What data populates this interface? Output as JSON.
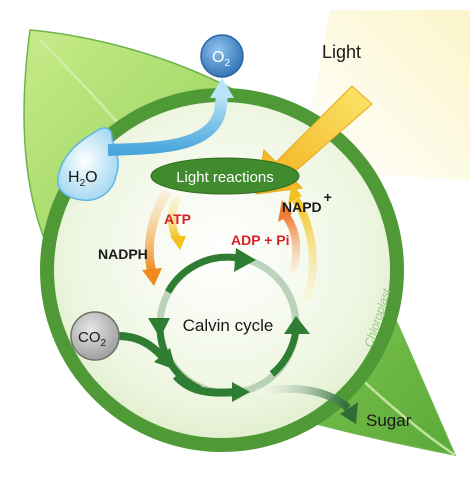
{
  "diagram": {
    "light_label": "Light",
    "o2": {
      "main": "O",
      "sub": "2"
    },
    "h2o": {
      "pre": "H",
      "sub": "2",
      "post": "O"
    },
    "co2": {
      "main": "CO",
      "sub": "2"
    },
    "light_reactions_label": "Light reactions",
    "atp_label": "ATP",
    "nadph_label": "NADPH",
    "adp_pi_label": "ADP + Pi",
    "napd_plus": {
      "main": "NAPD",
      "sup": "+"
    },
    "calvin_cycle_label": "Calvin cycle",
    "chloroplast_label": "Chloroplast",
    "sugar_label": "Sugar",
    "colors": {
      "leaf_light": "#b6e07a",
      "leaf_dark": "#5fae3a",
      "chloroplast_ring": "#4f9a36",
      "chloroplast_fill": "#f1f7e6",
      "light_reactions_fill": "#3f8b2e",
      "calvin_arrow": "#2f7d32",
      "light_beam": "#f6c531",
      "o2_fill": "#3f86c7",
      "h2o_fill": "#a9dcf5",
      "co2_fill": "#b9b9b9",
      "atp_text": "#d3222a",
      "dark_text": "#1a1a1a"
    }
  }
}
